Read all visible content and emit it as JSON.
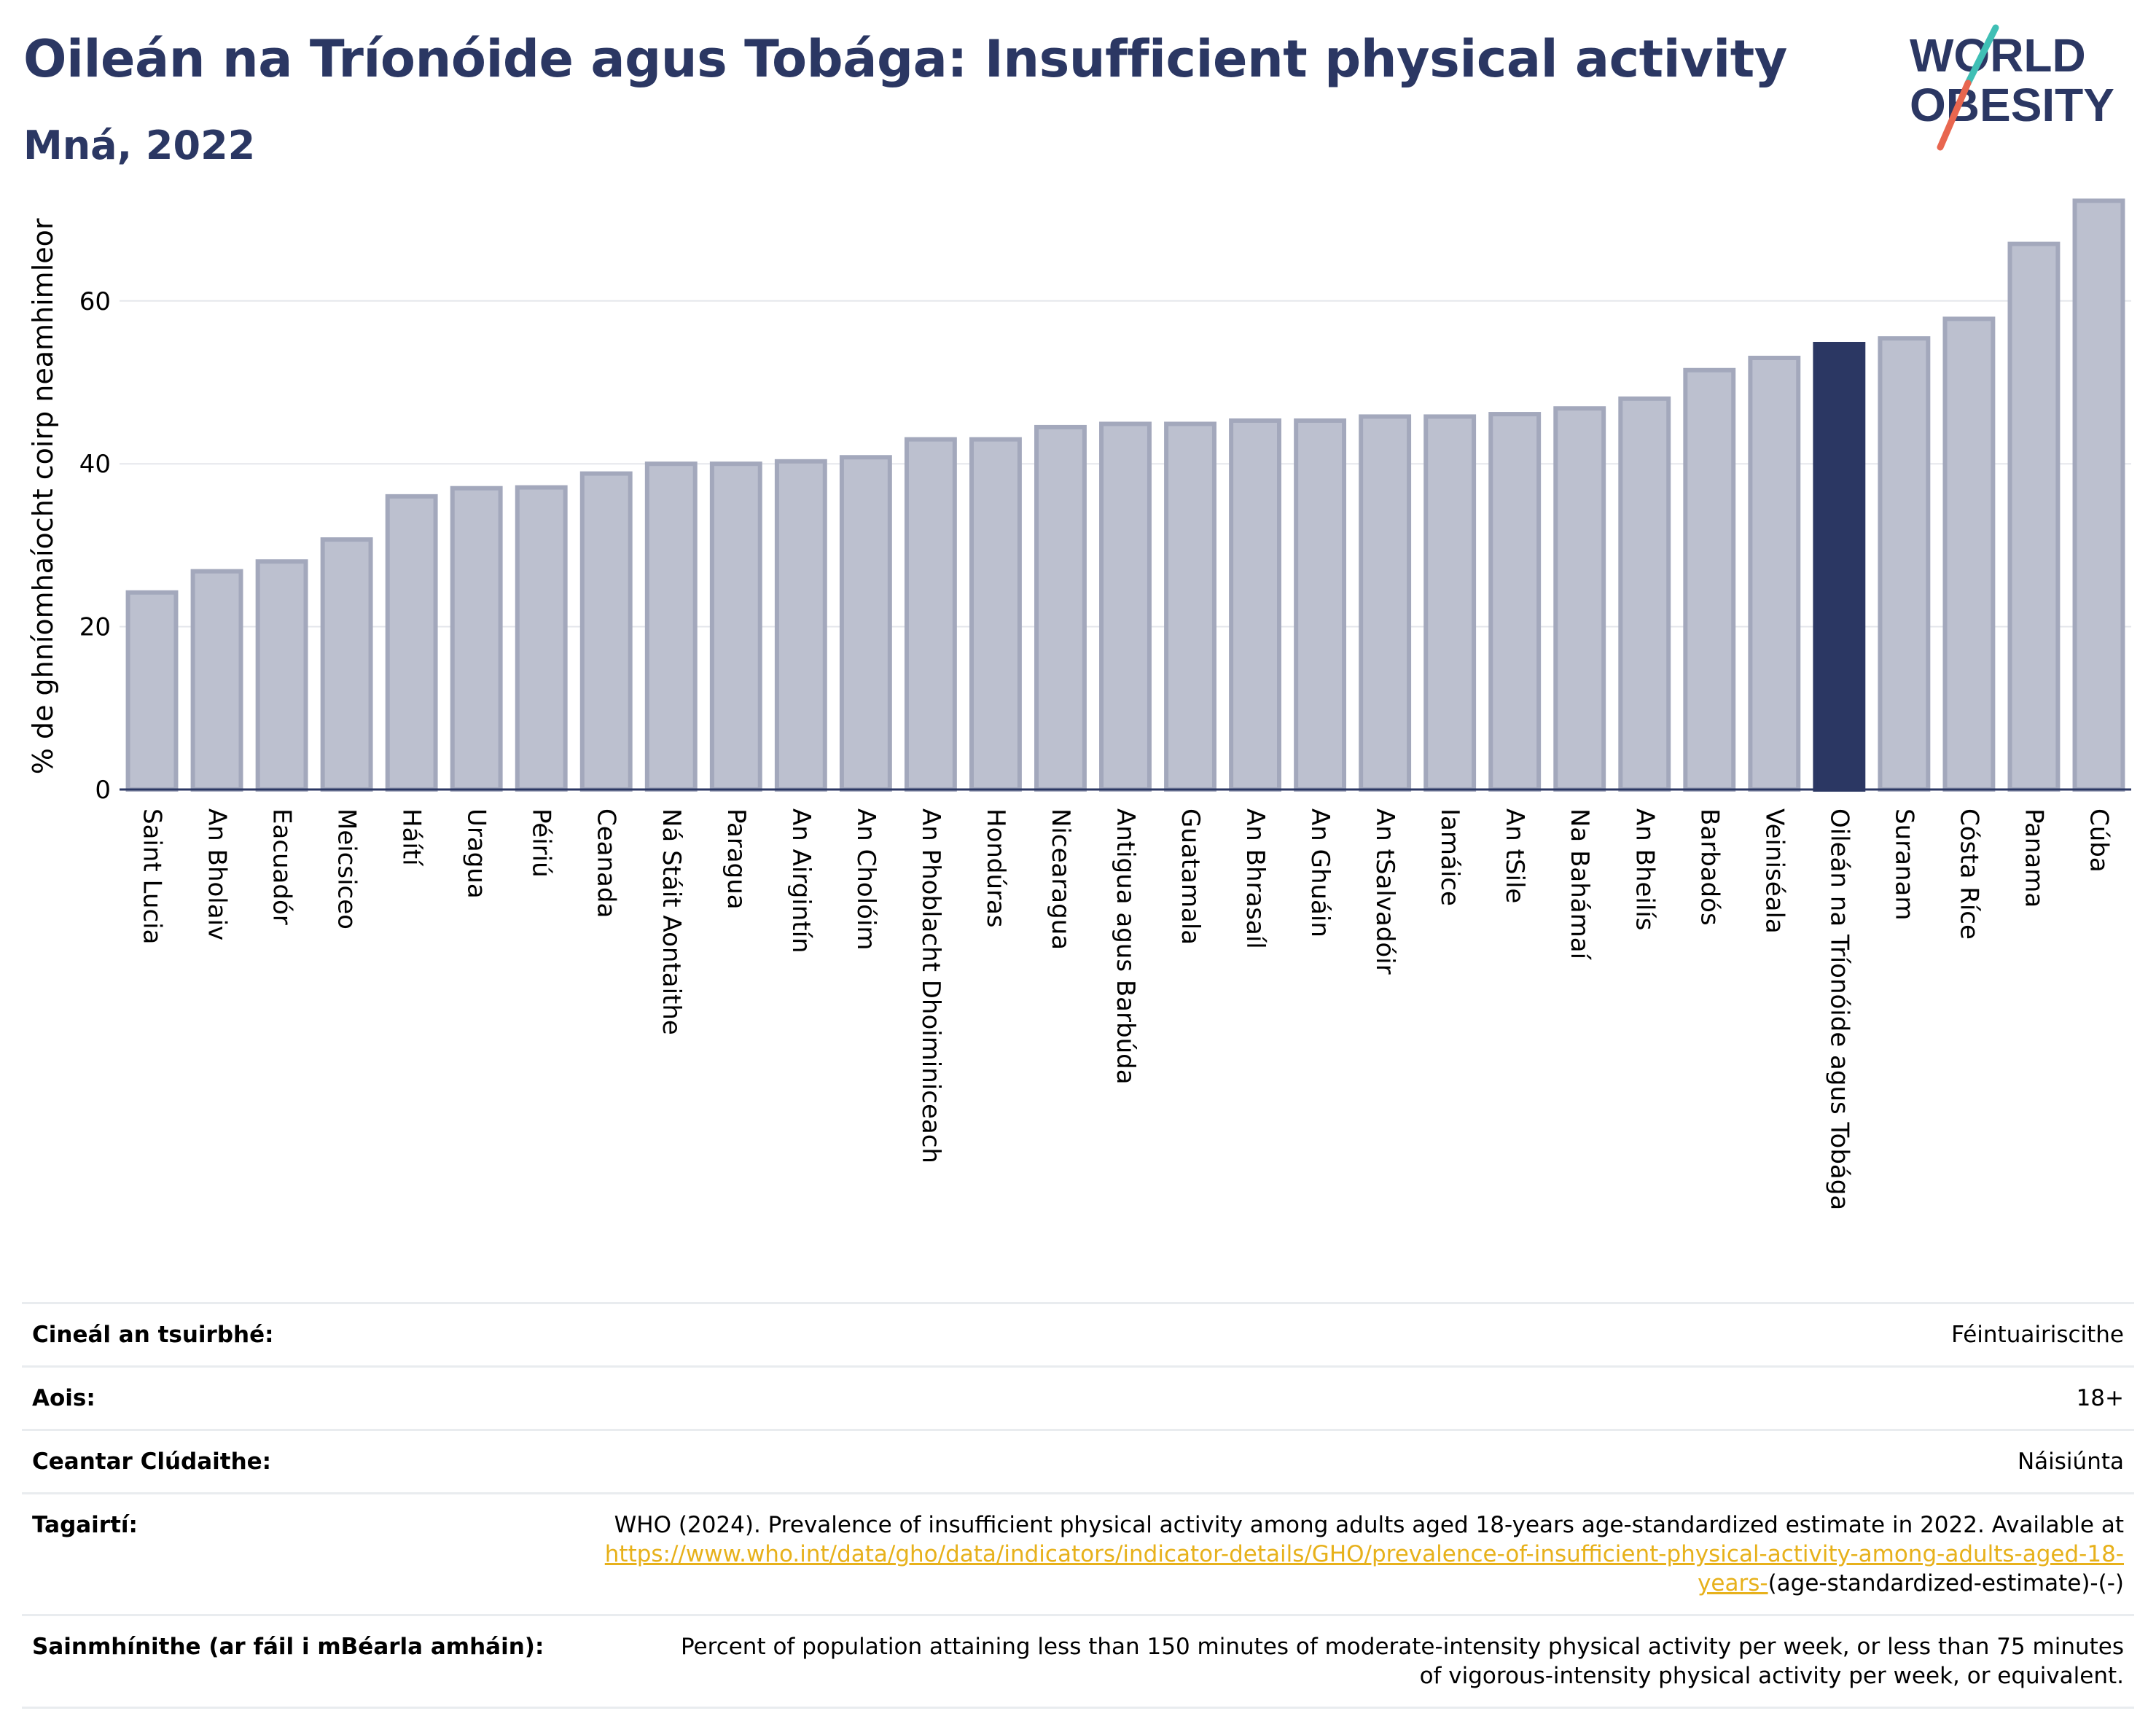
{
  "header": {
    "title": "Oileán na Tríonóide agus Tobága: Insufficient physical activity",
    "subtitle": "Mná, 2022"
  },
  "logo": {
    "line1": "WORLD",
    "line2": "OBESITY",
    "colors": {
      "text": "#2b3763",
      "slash_top": "#3fbfb5",
      "slash_bottom": "#e8664f"
    }
  },
  "colors": {
    "bar": "#bcc0cf",
    "bar_border": "#a3a8bc",
    "highlight": "#2b3763",
    "grid": "#e5e7ec",
    "axis": "#2b3763"
  },
  "chart_data": {
    "type": "bar",
    "ylabel": "% de ghníomhaíocht coirp neamhimleor",
    "ylim": [
      0,
      73.5
    ],
    "yticks": [
      0,
      20,
      40,
      60
    ],
    "grid": true,
    "highlight": "Oileán na Tríonóide agus Tobága",
    "categories": [
      "Saint Lucia",
      "An Bholaiv",
      "Eacuadór",
      "Meicsiceo",
      "Háítí",
      "Uragua",
      "Péiriú",
      "Ceanada",
      "Ná Stáit Aontaithe",
      "Paragua",
      "An Airgintín",
      "An Cholóim",
      "An Phoblacht Dhoiminiceach",
      "Hondúras",
      "Nicearagua",
      "Antigua agus Barbúda",
      "Guatamala",
      "An Bhrasaíl",
      "An Ghuáin",
      "An tSalvadóir",
      "Iamáice",
      "An tSile",
      "Na Bahámaí",
      "An Bheilís",
      "Barbadós",
      "Veiniséala",
      "Oileán na Tríonóide agus Tobága",
      "Suranam",
      "Cósta Ríce",
      "Panama",
      "Cúba"
    ],
    "values": [
      24.2,
      26.8,
      28.0,
      30.7,
      36.0,
      37.0,
      37.1,
      38.8,
      40.0,
      40.0,
      40.3,
      40.8,
      43.0,
      43.0,
      44.5,
      44.9,
      44.9,
      45.3,
      45.3,
      45.8,
      45.8,
      46.1,
      46.8,
      48.0,
      51.5,
      53.0,
      54.7,
      55.4,
      57.8,
      67.0,
      72.3
    ]
  },
  "meta": [
    {
      "label": "Cineál an tsuirbhé:",
      "value": "Féintuairiscithe"
    },
    {
      "label": "Aois:",
      "value": "18+"
    },
    {
      "label": "Ceantar Clúdaithe:",
      "value": "Náisiúnta"
    },
    {
      "label": "Tagairtí:",
      "value": "WHO (2024). Prevalence of insufficient physical activity among adults aged 18-years age-standardized estimate in 2022. Available at",
      "link": "https://www.who.int/data/gho/data/indicators/indicator-details/GHO/prevalence-of-insufficient-physical-activity-among-adults-aged-18-years-",
      "suffix": "(age-standardized-estimate)-(-)"
    },
    {
      "label": "Sainmhínithe (ar fáil i mBéarla amháin):",
      "value": "Percent of population attaining less than 150 minutes of moderate-intensity physical activity per week, or less than 75 minutes of vigorous-intensity physical activity per week, or equivalent."
    }
  ]
}
